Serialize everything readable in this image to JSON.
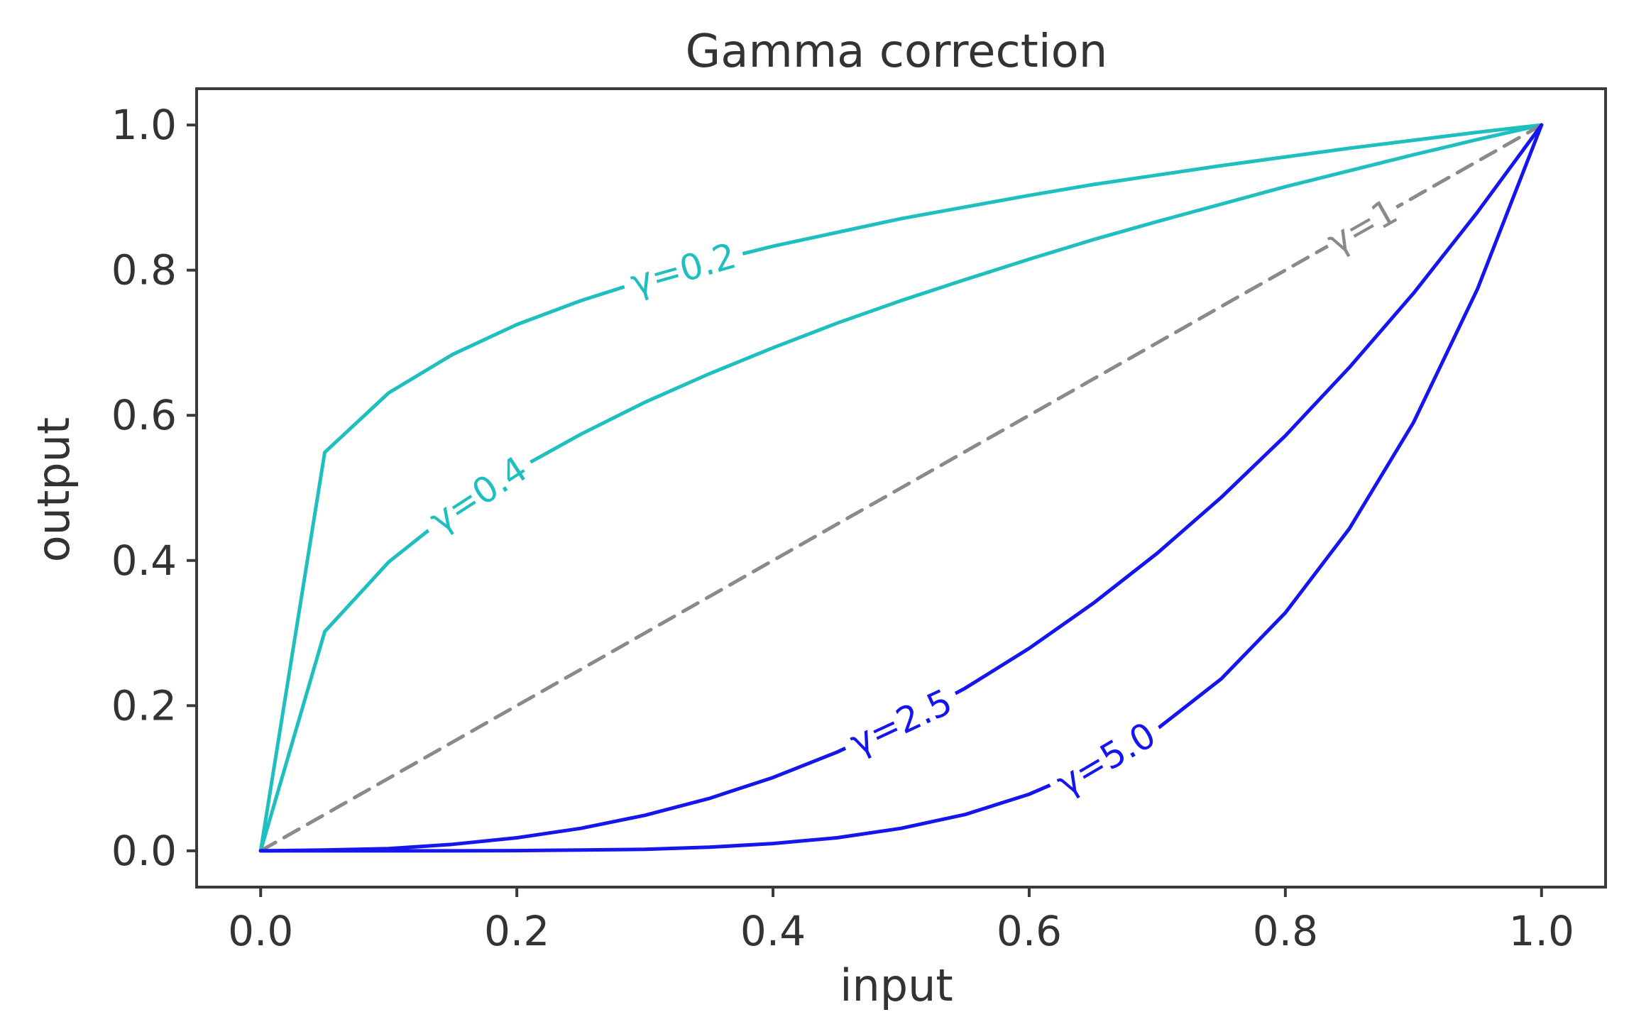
{
  "chart_data": {
    "type": "line",
    "title": "Gamma correction",
    "xlabel": "input",
    "ylabel": "output",
    "xlim": [
      -0.05,
      1.05
    ],
    "ylim": [
      -0.05,
      1.05
    ],
    "xticks": [
      "0.0",
      "0.2",
      "0.4",
      "0.6",
      "0.8",
      "1.0"
    ],
    "yticks": [
      "0.0",
      "0.2",
      "0.4",
      "0.6",
      "0.8",
      "1.0"
    ],
    "grid": false,
    "legend": "none",
    "x": [
      0.0,
      0.05,
      0.1,
      0.15,
      0.2,
      0.25,
      0.3,
      0.35,
      0.4,
      0.45,
      0.5,
      0.55,
      0.6,
      0.65,
      0.7,
      0.75,
      0.8,
      0.85,
      0.9,
      0.95,
      1.0
    ],
    "series": [
      {
        "name": "γ=0.2",
        "color": "#1fbfbf",
        "dashed": false,
        "label_x": 0.33,
        "values": [
          0.0,
          0.549,
          0.631,
          0.684,
          0.725,
          0.758,
          0.786,
          0.811,
          0.833,
          0.852,
          0.871,
          0.887,
          0.903,
          0.918,
          0.931,
          0.944,
          0.956,
          0.968,
          0.979,
          0.99,
          1.0
        ]
      },
      {
        "name": "γ=0.4",
        "color": "#1fbfbf",
        "dashed": false,
        "label_x": 0.17,
        "values": [
          0.0,
          0.302,
          0.398,
          0.468,
          0.525,
          0.574,
          0.618,
          0.657,
          0.693,
          0.727,
          0.758,
          0.787,
          0.815,
          0.842,
          0.867,
          0.891,
          0.915,
          0.937,
          0.959,
          0.98,
          1.0
        ]
      },
      {
        "name": "γ=1",
        "color": "#8a8a8a",
        "dashed": true,
        "label_x": 0.86,
        "values": [
          0.0,
          0.05,
          0.1,
          0.15,
          0.2,
          0.25,
          0.3,
          0.35,
          0.4,
          0.45,
          0.5,
          0.55,
          0.6,
          0.65,
          0.7,
          0.75,
          0.8,
          0.85,
          0.9,
          0.95,
          1.0
        ]
      },
      {
        "name": "γ=2.5",
        "color": "#1515ee",
        "dashed": false,
        "label_x": 0.5,
        "values": [
          0.0,
          0.001,
          0.003,
          0.009,
          0.018,
          0.031,
          0.049,
          0.072,
          0.101,
          0.136,
          0.177,
          0.224,
          0.279,
          0.341,
          0.41,
          0.487,
          0.572,
          0.666,
          0.768,
          0.88,
          1.0
        ]
      },
      {
        "name": "γ=5.0",
        "color": "#1515ee",
        "dashed": false,
        "label_x": 0.66,
        "values": [
          0.0,
          0.0,
          0.0,
          0.0,
          0.0003,
          0.001,
          0.002,
          0.005,
          0.01,
          0.018,
          0.031,
          0.05,
          0.078,
          0.116,
          0.168,
          0.237,
          0.328,
          0.444,
          0.59,
          0.774,
          1.0
        ]
      }
    ]
  }
}
